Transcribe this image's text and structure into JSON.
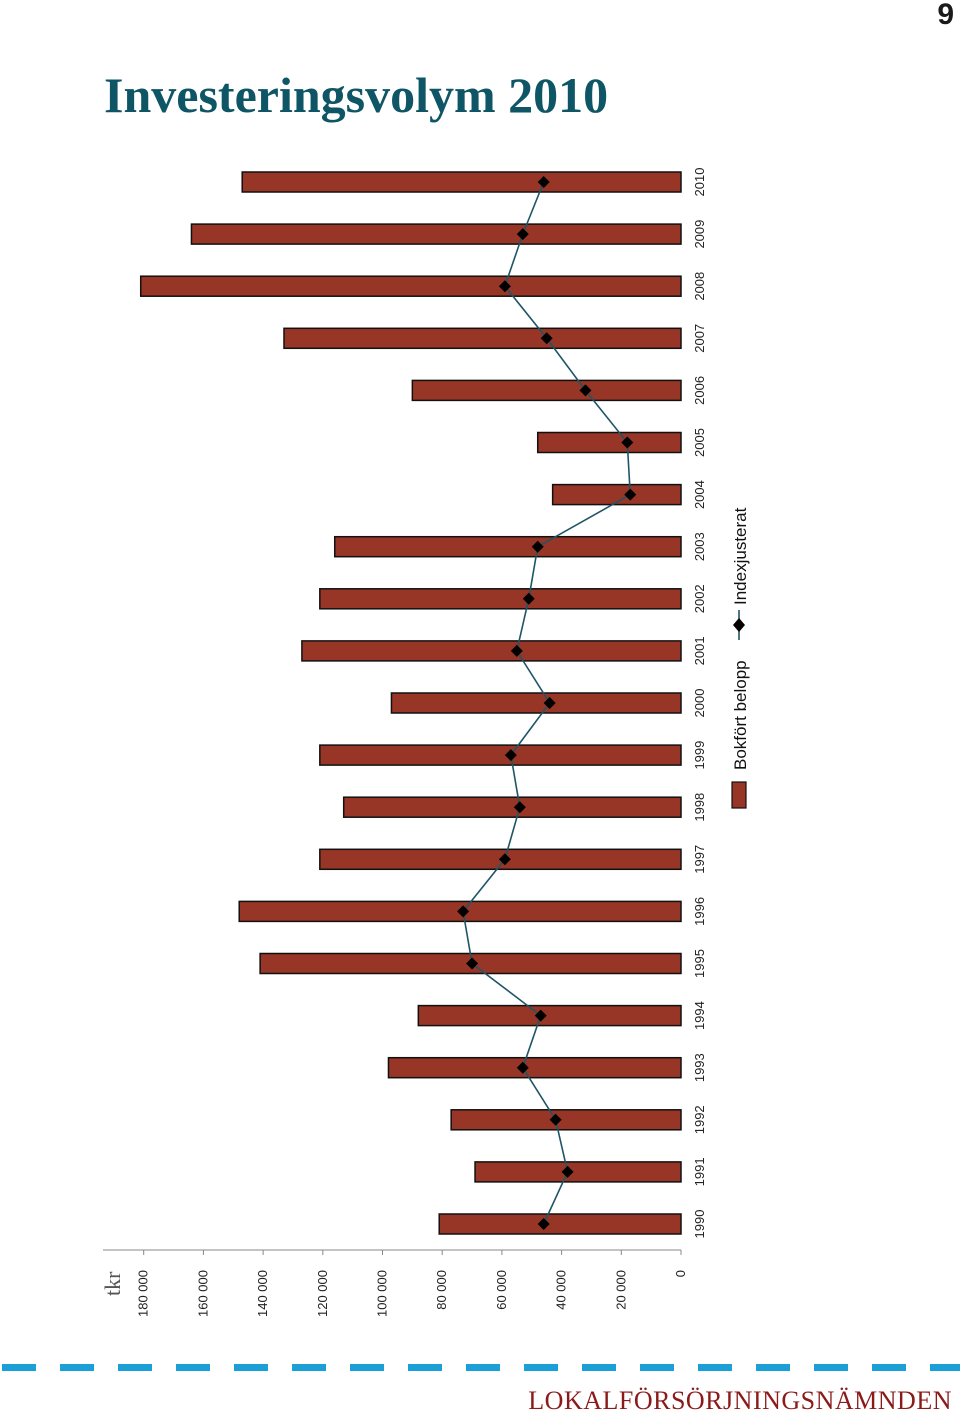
{
  "page": {
    "number": "9",
    "title": "Investeringsvolym 2010"
  },
  "footer": {
    "organization": "LOKALFÖRSÖRJNINGSNÄMNDEN"
  },
  "colors": {
    "bar": "#973526",
    "line": "#1f5566",
    "title": "#0e5566",
    "footer_text": "#8b1a1a",
    "dash": "#1aa0d6"
  },
  "chart_data": {
    "type": "bar",
    "orientation": "rotated-horizontal",
    "unit_label": "tkr",
    "categories": [
      "1990",
      "1991",
      "1992",
      "1993",
      "1994",
      "1995",
      "1996",
      "1997",
      "1998",
      "1999",
      "2000",
      "2001",
      "2002",
      "2003",
      "2004",
      "2005",
      "2006",
      "2007",
      "2008",
      "2009",
      "2010"
    ],
    "series": [
      {
        "name": "Bokfört belopp",
        "kind": "bar",
        "values": [
          81000,
          69000,
          77000,
          98000,
          88000,
          141000,
          148000,
          121000,
          113000,
          121000,
          97000,
          127000,
          121000,
          116000,
          43000,
          48000,
          90000,
          133000,
          181000,
          164000,
          147000
        ]
      },
      {
        "name": "Indexjusterat",
        "kind": "line-marker",
        "values": [
          46000,
          38000,
          42000,
          53000,
          47000,
          70000,
          73000,
          59000,
          54000,
          57000,
          44000,
          55000,
          51000,
          48000,
          17000,
          18000,
          32000,
          45000,
          59000,
          53000,
          46000
        ]
      }
    ],
    "y_ticks": [
      "0",
      "20 000",
      "40 000",
      "60 000",
      "80 000",
      "100 000",
      "120 000",
      "140 000",
      "160 000",
      "180 000"
    ],
    "ylim": [
      0,
      180000
    ],
    "grid": false,
    "legend_position": "bottom-right"
  }
}
